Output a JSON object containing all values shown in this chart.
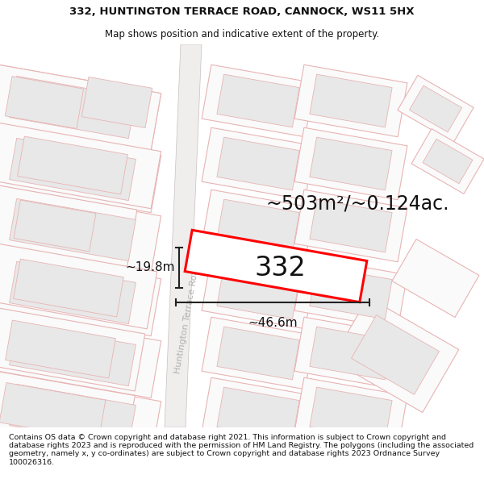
{
  "title_line1": "332, HUNTINGTON TERRACE ROAD, CANNOCK, WS11 5HX",
  "title_line2": "Map shows position and indicative extent of the property.",
  "area_label": "~503m²/~0.124ac.",
  "property_number": "332",
  "dim_width": "~46.6m",
  "dim_height": "~19.8m",
  "road_label": "Huntington Terrace Road",
  "copyright_text": "Contains OS data © Crown copyright and database right 2021. This information is subject to Crown copyright and database rights 2023 and is reproduced with the permission of HM Land Registry. The polygons (including the associated geometry, namely x, y co-ordinates) are subject to Crown copyright and database rights 2023 Ordnance Survey 100026316.",
  "bg_color": "#ffffff",
  "map_bg_color": "#ffffff",
  "building_fill": "#e8e8e8",
  "plot_edge": "#e8b4b4",
  "road_fill": "#f0eded",
  "road_edge": "#c8c0c0",
  "property_fill": "#ffffff",
  "property_edge": "#ff0000",
  "dim_color": "#222222",
  "road_text_color": "#b0b0b0",
  "title_fontsize": 9.5,
  "subtitle_fontsize": 8.5,
  "area_fontsize": 17,
  "property_fontsize": 24,
  "dim_fontsize": 11,
  "road_fontsize": 8,
  "footer_fontsize": 6.8
}
